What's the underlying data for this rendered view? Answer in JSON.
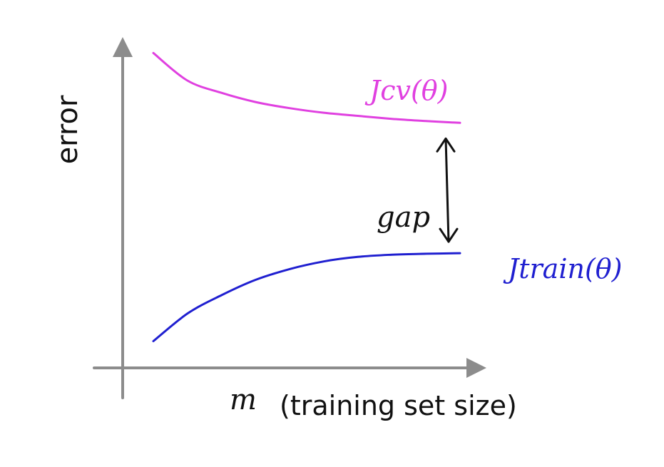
{
  "chart_data": {
    "type": "line",
    "title": "",
    "xlabel_variable": "m",
    "xlabel": "(training set size)",
    "ylabel": "error",
    "grid": false,
    "xlim": [
      0,
      10
    ],
    "ylim": [
      0,
      10
    ],
    "x": [
      1,
      2,
      3,
      4,
      5,
      6,
      7,
      8,
      9,
      10
    ],
    "series": [
      {
        "name": "Jcv(θ)",
        "color": "#e040e0",
        "values": [
          9.9,
          9.0,
          8.6,
          8.3,
          8.1,
          7.95,
          7.85,
          7.75,
          7.68,
          7.62
        ]
      },
      {
        "name": "Jtrain(θ)",
        "color": "#1f1fd0",
        "values": [
          0.5,
          1.4,
          2.0,
          2.5,
          2.85,
          3.1,
          3.25,
          3.32,
          3.35,
          3.37
        ]
      }
    ],
    "annotations": [
      {
        "text": "gap",
        "between": [
          "Jcv(θ)",
          "Jtrain(θ)"
        ],
        "at_x": 10
      }
    ]
  }
}
